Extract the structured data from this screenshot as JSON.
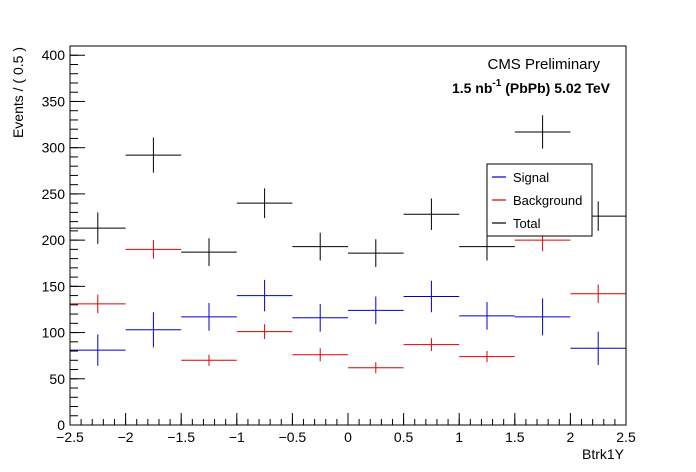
{
  "chart_data": {
    "type": "scatter",
    "title": "CMS Preliminary",
    "subtitle": {
      "prefix": "1.5 nb",
      "superscript": "-1",
      "suffix": " (PbPb) 5.02 TeV"
    },
    "xlabel": "Btrk1Y",
    "ylabel": "Events / ( 0.5 )",
    "xlim": [
      -2.5,
      2.5
    ],
    "ylim": [
      0,
      410
    ],
    "xticks": [
      -2.5,
      -2,
      -1.5,
      -1,
      -0.5,
      0,
      0.5,
      1,
      1.5,
      2,
      2.5
    ],
    "xtick_labels": [
      "−2.5",
      "−2",
      "−1.5",
      "−1",
      "−0.5",
      "0",
      "0.5",
      "1",
      "1.5",
      "2",
      "2.5"
    ],
    "yticks": [
      0,
      50,
      100,
      150,
      200,
      250,
      300,
      350,
      400
    ],
    "ytick_labels": [
      "0",
      "50",
      "100",
      "150",
      "200",
      "250",
      "300",
      "350",
      "400"
    ],
    "bin_width": 0.5,
    "x": [
      -2.25,
      -1.75,
      -1.25,
      -0.75,
      -0.25,
      0.25,
      0.75,
      1.25,
      1.75,
      2.25
    ],
    "legend_position": "upper-right",
    "series": [
      {
        "name": "Signal",
        "color": "#0000cc",
        "values": [
          81,
          103,
          117,
          140,
          116,
          124,
          139,
          118,
          117,
          83
        ],
        "errors": [
          17,
          19,
          15,
          17,
          15,
          15,
          17,
          15,
          20,
          18
        ]
      },
      {
        "name": "Background",
        "color": "#dd0000",
        "values": [
          131,
          190,
          70,
          101,
          76,
          62,
          87,
          74,
          200,
          142
        ],
        "errors": [
          10,
          10,
          6,
          8,
          7,
          6,
          7,
          6,
          12,
          10
        ]
      },
      {
        "name": "Total",
        "color": "#000000",
        "values": [
          213,
          292,
          187,
          240,
          193,
          186,
          228,
          193,
          317,
          226
        ],
        "errors": [
          17,
          19,
          15,
          16,
          15,
          15,
          17,
          15,
          18,
          16
        ]
      }
    ]
  }
}
